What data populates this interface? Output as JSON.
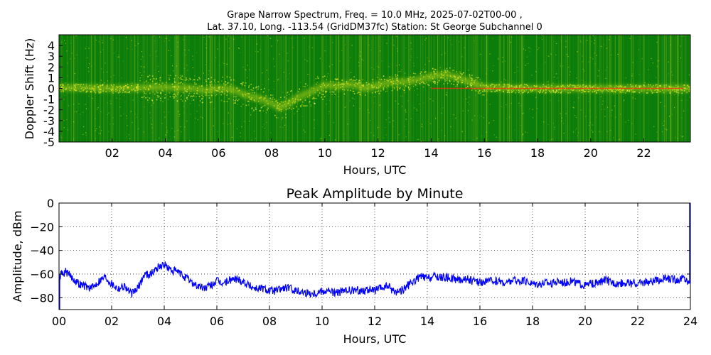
{
  "chart_data": [
    {
      "type": "heatmap",
      "title_line1": "Grape Narrow Spectrum, Freq. = 10.0 MHz, 2025-07-02T00-00 ,",
      "title_line2": "Lat.  37.10, Long. -113.54 (GridDM37fc) Station: St George Subchannel 0",
      "xlabel": "Hours, UTC",
      "ylabel": "Doppler Shift (Hz)",
      "xlim": [
        0,
        23.75
      ],
      "ylim": [
        -5,
        5
      ],
      "x_ticks": [
        "02",
        "04",
        "06",
        "08",
        "10",
        "12",
        "14",
        "16",
        "18",
        "20",
        "22"
      ],
      "x_tick_values": [
        2,
        4,
        6,
        8,
        10,
        12,
        14,
        16,
        18,
        20,
        22
      ],
      "y_ticks": [
        "4",
        "3",
        "2",
        "1",
        "0",
        "-1",
        "-2",
        "-3",
        "-4",
        "-5"
      ],
      "y_tick_values": [
        4,
        3,
        2,
        1,
        0,
        -1,
        -2,
        -3,
        -4,
        -5
      ],
      "colors": {
        "background": "#0b7d0b",
        "mid": "#d8e51c",
        "peak": "#ff2d10"
      },
      "doppler_trace": [
        [
          0,
          0.05
        ],
        [
          1,
          0.05
        ],
        [
          2,
          0.0
        ],
        [
          3,
          0.05
        ],
        [
          3.5,
          0.1
        ],
        [
          4,
          0.1
        ],
        [
          4.5,
          0.05
        ],
        [
          5,
          0.0
        ],
        [
          5.5,
          -0.2
        ],
        [
          6,
          0.0
        ],
        [
          6.5,
          -0.1
        ],
        [
          7,
          -0.6
        ],
        [
          7.5,
          -0.9
        ],
        [
          8,
          -1.4
        ],
        [
          8.3,
          -1.8
        ],
        [
          8.7,
          -1.3
        ],
        [
          9,
          -0.8
        ],
        [
          9.5,
          -0.3
        ],
        [
          10,
          0.3
        ],
        [
          10.5,
          0.2
        ],
        [
          11,
          0.4
        ],
        [
          11.5,
          0.0
        ],
        [
          12,
          0.3
        ],
        [
          12.5,
          0.6
        ],
        [
          13,
          0.6
        ],
        [
          13.5,
          0.8
        ],
        [
          14,
          1.1
        ],
        [
          14.5,
          1.3
        ],
        [
          15,
          1.0
        ],
        [
          16,
          0.1
        ],
        [
          18,
          0.0
        ],
        [
          20,
          0.0
        ],
        [
          22,
          0.0
        ],
        [
          23.75,
          0.0
        ]
      ]
    },
    {
      "type": "line",
      "title": "Peak Amplitude by Minute",
      "xlabel": "Hours, UTC",
      "ylabel": "Amplitude, dBm",
      "xlim": [
        0,
        24
      ],
      "ylim": [
        -90,
        0
      ],
      "grid": true,
      "line_color": "#0000ff",
      "x_ticks": [
        "00",
        "02",
        "04",
        "06",
        "08",
        "10",
        "12",
        "14",
        "16",
        "18",
        "20",
        "22",
        "24"
      ],
      "x_tick_values": [
        0,
        2,
        4,
        6,
        8,
        10,
        12,
        14,
        16,
        18,
        20,
        22,
        24
      ],
      "y_ticks": [
        "0",
        "−20",
        "−40",
        "−60",
        "−80"
      ],
      "y_tick_values": [
        0,
        -20,
        -40,
        -60,
        -80
      ],
      "series": [
        {
          "x": [
            0.0,
            0.25,
            0.5,
            0.75,
            1.0,
            1.25,
            1.5,
            1.75,
            2.0,
            2.25,
            2.5,
            2.75,
            3.0,
            3.25,
            3.5,
            3.75,
            4.0,
            4.25,
            4.5,
            4.75,
            5.0,
            5.25,
            5.5,
            5.75,
            6.0,
            6.25,
            6.5,
            6.75,
            7.0,
            7.25,
            7.5,
            7.75,
            8.0,
            8.25,
            8.5,
            8.75,
            9.0,
            9.25,
            9.5,
            9.75,
            10.0,
            10.25,
            10.5,
            10.75,
            11.0,
            11.25,
            11.5,
            11.75,
            12.0,
            12.25,
            12.5,
            12.75,
            13.0,
            13.25,
            13.5,
            13.75,
            14.0,
            14.25,
            14.5,
            14.75,
            15.0,
            15.25,
            15.5,
            15.75,
            16.0,
            16.25,
            16.5,
            16.75,
            17.0,
            17.25,
            17.5,
            17.75,
            18.0,
            18.25,
            18.5,
            18.75,
            19.0,
            19.25,
            19.5,
            19.75,
            20.0,
            20.25,
            20.5,
            20.75,
            21.0,
            21.25,
            21.5,
            21.75,
            22.0,
            22.25,
            22.5,
            22.75,
            23.0,
            23.25,
            23.5,
            23.75,
            23.95
          ],
          "values": [
            -62,
            -58,
            -63,
            -68,
            -70,
            -72,
            -66,
            -62,
            -68,
            -72,
            -70,
            -77,
            -72,
            -60,
            -60,
            -54,
            -52,
            -57,
            -58,
            -62,
            -66,
            -70,
            -72,
            -70,
            -66,
            -68,
            -65,
            -64,
            -66,
            -70,
            -72,
            -72,
            -74,
            -74,
            -72,
            -72,
            -74,
            -75,
            -76,
            -76,
            -74,
            -74,
            -76,
            -75,
            -74,
            -74,
            -74,
            -73,
            -74,
            -72,
            -70,
            -75,
            -74,
            -70,
            -66,
            -62,
            -64,
            -62,
            -63,
            -63,
            -64,
            -65,
            -64,
            -66,
            -67,
            -66,
            -66,
            -66,
            -68,
            -65,
            -66,
            -66,
            -68,
            -68,
            -67,
            -68,
            -66,
            -67,
            -66,
            -68,
            -70,
            -68,
            -68,
            -65,
            -67,
            -68,
            -67,
            -68,
            -68,
            -67,
            -66,
            -66,
            -64,
            -64,
            -65,
            -63,
            -68
          ]
        }
      ]
    }
  ]
}
